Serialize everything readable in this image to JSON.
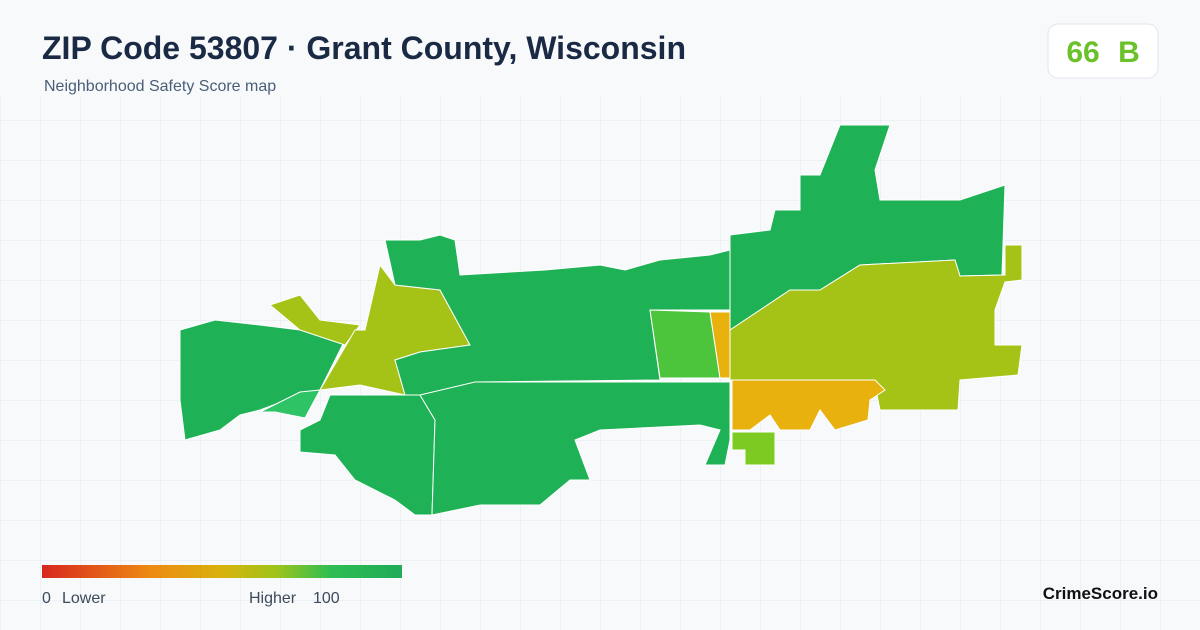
{
  "header": {
    "title": "ZIP Code 53807 · Grant County, Wisconsin",
    "subtitle": "Neighborhood Safety Score map"
  },
  "badge": {
    "score": 66,
    "grade": "B"
  },
  "legend": {
    "min": 0,
    "min_label": "Lower",
    "max_label": "Higher",
    "max": 100
  },
  "brand": "CrimeScore.io"
}
